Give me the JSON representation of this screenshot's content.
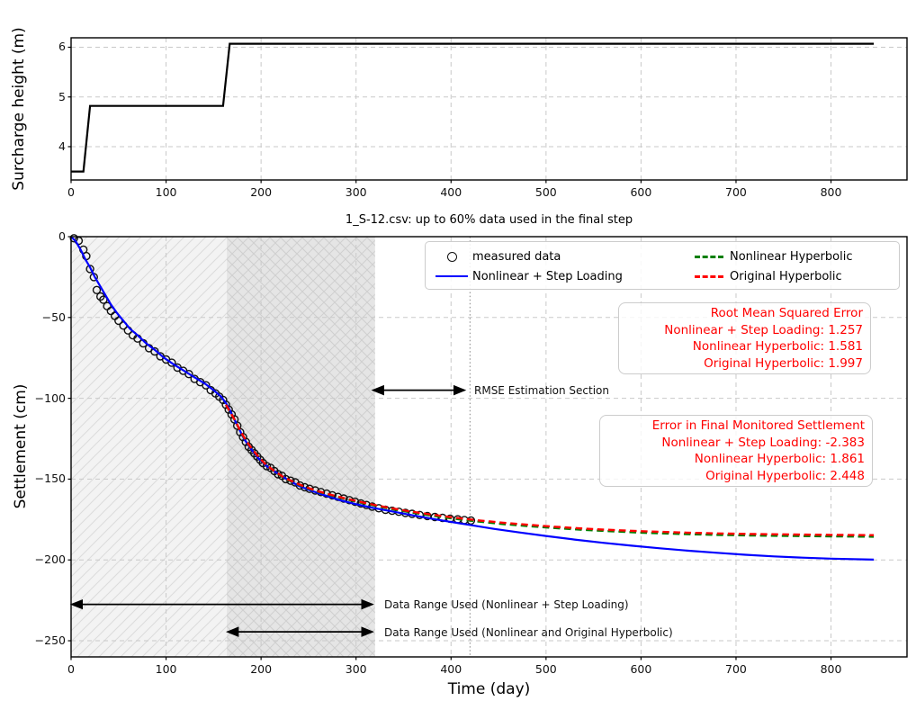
{
  "chart_data": [
    {
      "type": "line",
      "name": "surcharge-height-chart",
      "ylabel": "Surcharge height (m)",
      "xlim": [
        0,
        880
      ],
      "ylim": [
        3.33,
        6.19
      ],
      "grid": true,
      "x_tick_values": [
        0,
        100,
        200,
        300,
        400,
        500,
        600,
        700,
        800
      ],
      "x_tick_labels": [
        "0",
        "100",
        "200",
        "300",
        "400",
        "500",
        "600",
        "700",
        "800"
      ],
      "y_tick_values": [
        4,
        5,
        6
      ],
      "y_tick_labels": [
        "4",
        "5",
        "6"
      ],
      "series": [
        {
          "name": "surcharge-height",
          "color": "#000000",
          "style": "solid",
          "width": 2.2,
          "points": [
            [
              0,
              3.5
            ],
            [
              13,
              3.5
            ],
            [
              20,
              4.82
            ],
            [
              160,
              4.82
            ],
            [
              167,
              6.07
            ],
            [
              845,
              6.07
            ]
          ]
        }
      ]
    },
    {
      "type": "line+scatter",
      "name": "settlement-chart",
      "title": "1_S-12.csv: up to 60% data used in the final step",
      "xlabel": "Time (day)",
      "ylabel": "Settlement (cm)",
      "xlim": [
        0,
        880
      ],
      "ylim": [
        -260,
        0
      ],
      "grid": true,
      "x_tick_values": [
        0,
        100,
        200,
        300,
        400,
        500,
        600,
        700,
        800
      ],
      "x_tick_labels": [
        "0",
        "100",
        "200",
        "300",
        "400",
        "500",
        "600",
        "700",
        "800"
      ],
      "y_tick_values": [
        0,
        -50,
        -100,
        -150,
        -200,
        -250
      ],
      "y_tick_labels": [
        "0",
        "−50",
        "−100",
        "−150",
        "−200",
        "−250"
      ],
      "shaded_regions": [
        {
          "name": "data-range-step-loading",
          "x": [
            0,
            320
          ],
          "hatch": "/",
          "fill": "#f3f3f3"
        },
        {
          "name": "data-range-hyperbolic",
          "x": [
            164,
            320
          ],
          "hatch": "\\",
          "fill": "rgba(110,110,110,0.10)"
        }
      ],
      "end_of_data_vline": {
        "x": 420,
        "style": "dotted"
      },
      "series": [
        {
          "name": "measured-data",
          "color": "#111111",
          "style": "scatter",
          "marker": "circle",
          "points": [
            [
              3,
              -1
            ],
            [
              8,
              -2.5
            ],
            [
              13,
              -8
            ],
            [
              16,
              -12
            ],
            [
              20,
              -20
            ],
            [
              24,
              -25
            ],
            [
              27,
              -33
            ],
            [
              31,
              -37
            ],
            [
              34,
              -39
            ],
            [
              38,
              -43
            ],
            [
              42,
              -46
            ],
            [
              46,
              -49
            ],
            [
              50,
              -52
            ],
            [
              55,
              -55
            ],
            [
              60,
              -58
            ],
            [
              65,
              -61
            ],
            [
              70,
              -63
            ],
            [
              76,
              -66
            ],
            [
              82,
              -69
            ],
            [
              88,
              -71
            ],
            [
              94,
              -74
            ],
            [
              100,
              -76
            ],
            [
              106,
              -78
            ],
            [
              112,
              -81
            ],
            [
              118,
              -83
            ],
            [
              124,
              -85
            ],
            [
              130,
              -88
            ],
            [
              136,
              -90
            ],
            [
              142,
              -92
            ],
            [
              147,
              -95
            ],
            [
              152,
              -97
            ],
            [
              156,
              -99
            ],
            [
              160,
              -101
            ],
            [
              163,
              -104
            ],
            [
              166,
              -107
            ],
            [
              169,
              -110
            ],
            [
              172,
              -113
            ],
            [
              175,
              -117
            ],
            [
              178,
              -121
            ],
            [
              181,
              -124
            ],
            [
              184,
              -127
            ],
            [
              187,
              -130
            ],
            [
              190,
              -132
            ],
            [
              193,
              -134
            ],
            [
              196,
              -136
            ],
            [
              199,
              -138
            ],
            [
              202,
              -140
            ],
            [
              206,
              -142
            ],
            [
              210,
              -143
            ],
            [
              214,
              -145
            ],
            [
              218,
              -147
            ],
            [
              222,
              -148
            ],
            [
              226,
              -150
            ],
            [
              231,
              -151
            ],
            [
              236,
              -152
            ],
            [
              241,
              -154
            ],
            [
              246,
              -155
            ],
            [
              251,
              -156
            ],
            [
              257,
              -157
            ],
            [
              263,
              -158
            ],
            [
              269,
              -159
            ],
            [
              275,
              -160
            ],
            [
              281,
              -161
            ],
            [
              287,
              -162
            ],
            [
              293,
              -163
            ],
            [
              299,
              -164
            ],
            [
              305,
              -165
            ],
            [
              311,
              -166
            ],
            [
              317,
              -167
            ],
            [
              324,
              -168
            ],
            [
              331,
              -169
            ],
            [
              338,
              -169.6
            ],
            [
              345,
              -170.2
            ],
            [
              352,
              -170.9
            ],
            [
              359,
              -171.5
            ],
            [
              367,
              -172.2
            ],
            [
              375,
              -172.8
            ],
            [
              383,
              -173.4
            ],
            [
              391,
              -174
            ],
            [
              399,
              -174.5
            ],
            [
              407,
              -174.9
            ],
            [
              414,
              -175.3
            ],
            [
              421,
              -175.6
            ]
          ]
        },
        {
          "name": "nonlinear-step-loading",
          "color": "#0000ff",
          "style": "solid",
          "width": 2.2,
          "points": [
            [
              0,
              0
            ],
            [
              5,
              -3
            ],
            [
              10,
              -8
            ],
            [
              15,
              -14
            ],
            [
              20,
              -19
            ],
            [
              25,
              -25
            ],
            [
              30,
              -30
            ],
            [
              36,
              -36
            ],
            [
              42,
              -42
            ],
            [
              48,
              -47
            ],
            [
              55,
              -52
            ],
            [
              62,
              -57
            ],
            [
              70,
              -61
            ],
            [
              79,
              -66
            ],
            [
              88,
              -70
            ],
            [
              98,
              -75
            ],
            [
              108,
              -79
            ],
            [
              119,
              -83
            ],
            [
              130,
              -87
            ],
            [
              141,
              -91
            ],
            [
              150,
              -95
            ],
            [
              158,
              -99
            ],
            [
              163,
              -103
            ],
            [
              167,
              -107
            ],
            [
              171,
              -112
            ],
            [
              176,
              -118
            ],
            [
              182,
              -125
            ],
            [
              189,
              -131
            ],
            [
              197,
              -137
            ],
            [
              206,
              -142
            ],
            [
              216,
              -146
            ],
            [
              227,
              -150
            ],
            [
              239,
              -154
            ],
            [
              252,
              -157
            ],
            [
              267,
              -160
            ],
            [
              283,
              -163
            ],
            [
              300,
              -165.5
            ],
            [
              318,
              -167.8
            ],
            [
              338,
              -170
            ],
            [
              358,
              -172.2
            ],
            [
              378,
              -174.3
            ],
            [
              398,
              -176.3
            ],
            [
              418,
              -178.2
            ],
            [
              445,
              -180.8
            ],
            [
              472,
              -183
            ],
            [
              500,
              -185.2
            ],
            [
              530,
              -187.4
            ],
            [
              560,
              -189.4
            ],
            [
              590,
              -191.2
            ],
            [
              620,
              -192.8
            ],
            [
              650,
              -194.3
            ],
            [
              680,
              -195.6
            ],
            [
              710,
              -196.8
            ],
            [
              740,
              -197.8
            ],
            [
              770,
              -198.6
            ],
            [
              800,
              -199.2
            ],
            [
              845,
              -199.8
            ]
          ]
        },
        {
          "name": "nonlinear-hyperbolic",
          "color": "#007f00",
          "style": "dashed",
          "width": 2.4,
          "points": [
            [
              163,
              -104
            ],
            [
              168,
              -109
            ],
            [
              173,
              -114.2
            ],
            [
              178,
              -120.2
            ],
            [
              184,
              -126.2
            ],
            [
              190,
              -131.2
            ],
            [
              197,
              -136.2
            ],
            [
              205,
              -141.2
            ],
            [
              214,
              -145.2
            ],
            [
              224,
              -149.3
            ],
            [
              235,
              -152.3
            ],
            [
              247,
              -155.3
            ],
            [
              260,
              -157.8
            ],
            [
              274,
              -160.1
            ],
            [
              289,
              -162.4
            ],
            [
              305,
              -164.6
            ],
            [
              321,
              -166.6
            ],
            [
              338,
              -168.6
            ],
            [
              356,
              -170.4
            ],
            [
              374,
              -172.1
            ],
            [
              392,
              -173.6
            ],
            [
              410,
              -175
            ],
            [
              430,
              -176.3
            ],
            [
              455,
              -177.8
            ],
            [
              480,
              -179
            ],
            [
              510,
              -180.3
            ],
            [
              540,
              -181.4
            ],
            [
              570,
              -182.3
            ],
            [
              600,
              -183.1
            ],
            [
              640,
              -183.9
            ],
            [
              680,
              -184.5
            ],
            [
              720,
              -184.9
            ],
            [
              760,
              -185.2
            ],
            [
              800,
              -185.4
            ],
            [
              845,
              -185.6
            ]
          ]
        },
        {
          "name": "original-hyperbolic",
          "color": "#ff0000",
          "style": "dashed",
          "width": 2.4,
          "points": [
            [
              163,
              -104
            ],
            [
              168,
              -109
            ],
            [
              173,
              -114
            ],
            [
              178,
              -120
            ],
            [
              184,
              -126
            ],
            [
              190,
              -131
            ],
            [
              197,
              -136
            ],
            [
              205,
              -141
            ],
            [
              214,
              -145
            ],
            [
              224,
              -149
            ],
            [
              235,
              -152
            ],
            [
              247,
              -155
            ],
            [
              260,
              -157.5
            ],
            [
              274,
              -159.8
            ],
            [
              289,
              -162
            ],
            [
              305,
              -164.2
            ],
            [
              321,
              -166.2
            ],
            [
              338,
              -168.1
            ],
            [
              356,
              -169.9
            ],
            [
              374,
              -171.5
            ],
            [
              392,
              -173
            ],
            [
              410,
              -174.3
            ],
            [
              430,
              -175.6
            ],
            [
              455,
              -177
            ],
            [
              480,
              -178.2
            ],
            [
              510,
              -179.5
            ],
            [
              540,
              -180.6
            ],
            [
              570,
              -181.5
            ],
            [
              600,
              -182.2
            ],
            [
              640,
              -183
            ],
            [
              680,
              -183.6
            ],
            [
              720,
              -184
            ],
            [
              760,
              -184.3
            ],
            [
              800,
              -184.5
            ],
            [
              845,
              -184.7
            ]
          ]
        }
      ],
      "legend": {
        "position": "upper center",
        "items": [
          {
            "label": "measured data",
            "marker": "circle",
            "color": "#111111"
          },
          {
            "label": "Nonlinear + Step Loading",
            "marker": "solid-line",
            "color": "#0000ff"
          },
          {
            "label": "Nonlinear Hyperbolic",
            "marker": "dashed-line",
            "color": "#007f00"
          },
          {
            "label": "Original Hyperbolic",
            "marker": "dashed-line",
            "color": "#ff0000"
          }
        ]
      },
      "annotations": {
        "rmse_box": {
          "color": "#ff0000",
          "lines": [
            "Root Mean Squared Error",
            "Nonlinear + Step Loading: 1.257",
            "Nonlinear Hyperbolic: 1.581",
            "Original Hyperbolic: 1.997"
          ]
        },
        "final_error_box": {
          "color": "#ff0000",
          "lines": [
            "Error in Final Monitored Settlement",
            "Nonlinear + Step Loading: -2.383",
            "Nonlinear Hyperbolic: 1.861",
            "Original Hyperbolic: 2.448"
          ]
        },
        "rmse_section_arrow": {
          "label": "RMSE Estimation Section",
          "x": [
            317,
            415
          ],
          "y": -95
        },
        "data_range_arrow_step": {
          "label": "Data Range Used (Nonlinear + Step Loading)",
          "x": [
            0,
            318
          ],
          "y": -227.5
        },
        "data_range_arrow_hyperbolic": {
          "label": "Data Range Used (Nonlinear and Original Hyperbolic)",
          "x": [
            164,
            318
          ],
          "y": -244.5
        }
      }
    }
  ]
}
